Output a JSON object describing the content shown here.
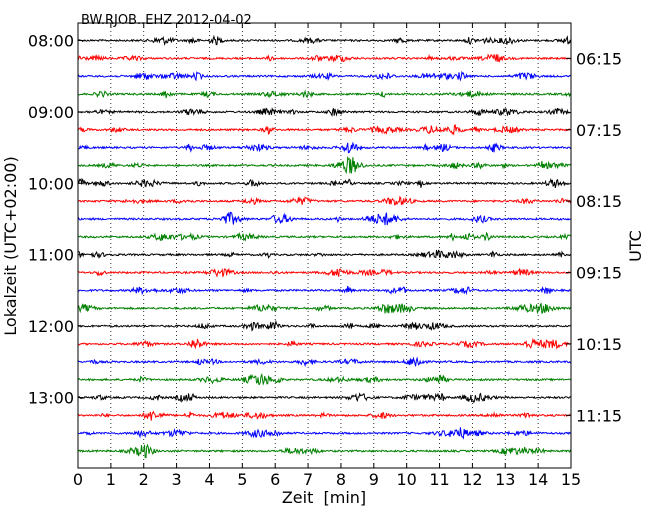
{
  "chart_data": {
    "type": "line",
    "title": "BW.RJOB..EHZ 2012-04-02",
    "xlabel": "Zeit  [min]",
    "ylabel_left": "Lokalzeit (UTC+02:00)",
    "ylabel_right": "UTC",
    "xlim": [
      0,
      15
    ],
    "x_ticks": [
      "0",
      "1",
      "2",
      "3",
      "4",
      "5",
      "6",
      "7",
      "8",
      "9",
      "10",
      "11",
      "12",
      "13",
      "14",
      "15"
    ],
    "x_grid": "dotted vertical at each minute",
    "trace_count": 24,
    "trace_interval_min": 15,
    "trace_colors": [
      "#000000",
      "#ff0000",
      "#0000ff",
      "#008000"
    ],
    "left_tick_labels": [
      "08:00",
      "09:00",
      "10:00",
      "11:00",
      "12:00",
      "13:00"
    ],
    "right_tick_labels": [
      "06:15",
      "07:15",
      "08:15",
      "09:15",
      "10:15",
      "11:15"
    ],
    "tick_every_n_traces": 4,
    "right_tick_trace_offset": 1
  }
}
